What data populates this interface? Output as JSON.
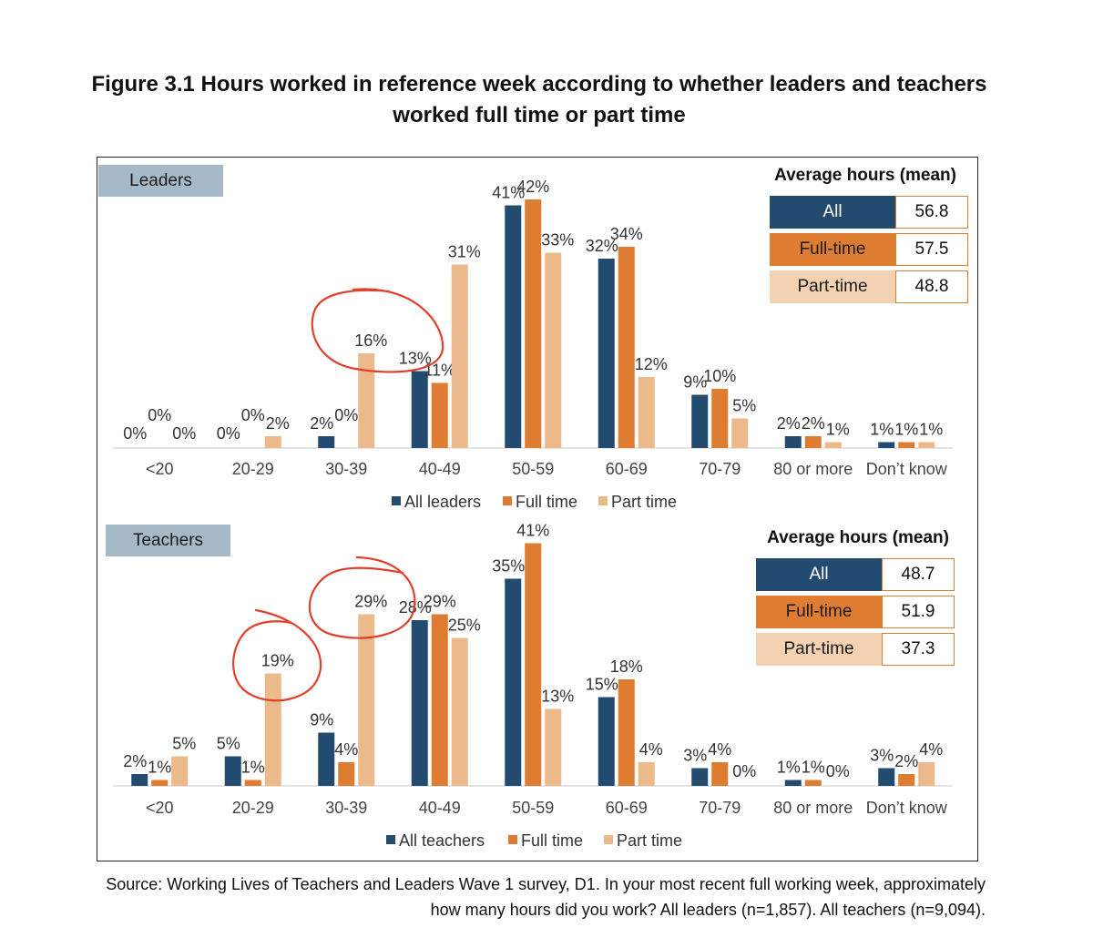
{
  "title": "Figure 3.1 Hours worked in reference week according to whether leaders and teachers worked full time or part time",
  "colors": {
    "all": "#234b70",
    "full_time": "#de7c31",
    "part_time": "#ecb98b",
    "annotation": "#e0412c"
  },
  "categories": [
    "<20",
    "20-29",
    "30-39",
    "40-49",
    "50-59",
    "60-69",
    "70-79",
    "80 or more",
    "Don’t know"
  ],
  "chart_data": [
    {
      "type": "bar",
      "panel": "Leaders",
      "categories": [
        "<20",
        "20-29",
        "30-39",
        "40-49",
        "50-59",
        "60-69",
        "70-79",
        "80 or more",
        "Don’t know"
      ],
      "series": [
        {
          "name": "All leaders",
          "values": [
            0,
            0,
            2,
            13,
            41,
            32,
            9,
            2,
            1
          ]
        },
        {
          "name": "Full time",
          "values": [
            0,
            0,
            0,
            11,
            42,
            34,
            10,
            2,
            1
          ]
        },
        {
          "name": "Part time",
          "values": [
            0,
            2,
            16,
            31,
            33,
            12,
            5,
            1,
            1
          ]
        }
      ],
      "ylim": [
        0,
        45
      ],
      "highlighted": [
        {
          "category": "30-39",
          "series": "Part time"
        }
      ],
      "average_hours": {
        "title": "Average hours (mean)",
        "rows": [
          {
            "label": "All",
            "value": "56.8"
          },
          {
            "label": "Full-time",
            "value": "57.5"
          },
          {
            "label": "Part-time",
            "value": "48.8"
          }
        ]
      }
    },
    {
      "type": "bar",
      "panel": "Teachers",
      "categories": [
        "<20",
        "20-29",
        "30-39",
        "40-49",
        "50-59",
        "60-69",
        "70-79",
        "80 or more",
        "Don’t know"
      ],
      "series": [
        {
          "name": "All teachers",
          "values": [
            2,
            5,
            9,
            28,
            35,
            15,
            3,
            1,
            3
          ]
        },
        {
          "name": "Full time",
          "values": [
            1,
            1,
            4,
            29,
            41,
            18,
            4,
            1,
            2
          ]
        },
        {
          "name": "Part time",
          "values": [
            5,
            19,
            29,
            25,
            13,
            4,
            0,
            0,
            4
          ]
        }
      ],
      "ylim": [
        0,
        45
      ],
      "highlighted": [
        {
          "category": "20-29",
          "series": "Part time"
        },
        {
          "category": "30-39",
          "series": "Part time"
        }
      ],
      "average_hours": {
        "title": "Average hours (mean)",
        "rows": [
          {
            "label": "All",
            "value": "48.7"
          },
          {
            "label": "Full-time",
            "value": "51.9"
          },
          {
            "label": "Part-time",
            "value": "37.3"
          }
        ]
      }
    }
  ],
  "source": "Source: Working Lives of Teachers and Leaders Wave 1 survey, D1. In your most recent full working week, approximately how many hours did you work? All leaders (n=1,857). All teachers (n=9,094)."
}
